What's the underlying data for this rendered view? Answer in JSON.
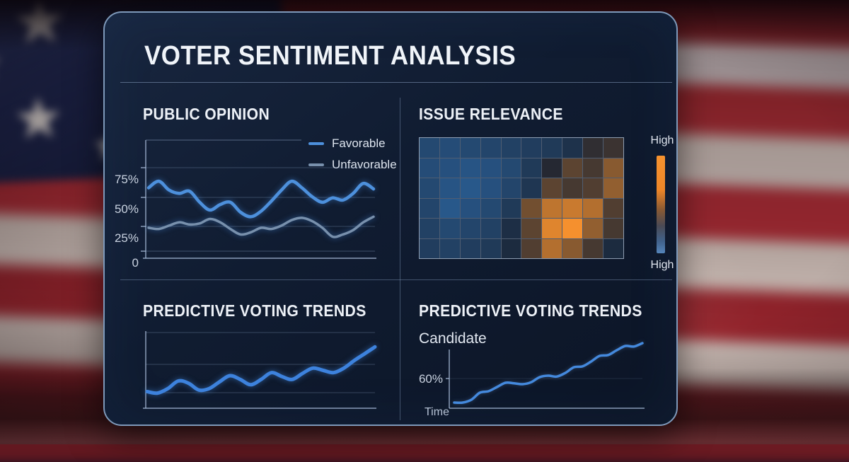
{
  "title": "VOTER SENTIMENT ANALYSIS",
  "sections": {
    "public_opinion": {
      "title": "PUBLIC OPINION",
      "y_axis_labels": [
        "75%",
        "50%",
        "25%",
        "0"
      ],
      "legend": [
        {
          "label": "Favorable",
          "color": "#4d90dc"
        },
        {
          "label": "Unfavorable",
          "color": "#7890ac"
        }
      ]
    },
    "issue_relevance": {
      "title": "ISSUE RELEVANCE",
      "colorbar": {
        "top_label": "High",
        "bottom_label": "High",
        "gradient": [
          "#f6922f",
          "#ee8628",
          "#8a5a33",
          "#4a4a55",
          "#41628c",
          "#5585bb"
        ]
      }
    },
    "predictive_left": {
      "title": "PREDICTIVE VOTING TRENDS"
    },
    "predictive_right": {
      "title": "PREDICTIVE VOTING TRENDS",
      "series_label": "Candidate",
      "y_tick_label": "60%",
      "x_axis_label": "Time"
    }
  },
  "chart_data": [
    {
      "type": "line",
      "panel": "public_opinion",
      "title": "PUBLIC OPINION",
      "xlabel": "",
      "ylabel": "",
      "ylim": [
        0,
        100
      ],
      "y_ticks_percent": [
        75,
        50,
        25,
        0
      ],
      "grid": true,
      "legend_position": "top-right",
      "series": [
        {
          "name": "Favorable",
          "color": "#4d90dc",
          "values": [
            57,
            63,
            55,
            52,
            54,
            44,
            37,
            42,
            44,
            35,
            31,
            36,
            45,
            55,
            63,
            57,
            49,
            44,
            48,
            46,
            52,
            61,
            56
          ]
        },
        {
          "name": "Unfavorable",
          "color": "#7890ac",
          "values": [
            21,
            20,
            23,
            26,
            24,
            25,
            29,
            26,
            20,
            15,
            17,
            21,
            20,
            23,
            28,
            30,
            27,
            21,
            13,
            15,
            19,
            26,
            31
          ]
        }
      ]
    },
    {
      "type": "heatmap",
      "panel": "issue_relevance",
      "title": "ISSUE RELEVANCE",
      "rows": 6,
      "cols": 10,
      "scale_note": "-1 = blue (low relevance), 0 = dark neutral, +1 = bright orange (high relevance)",
      "colors": {
        "low": "#2e6eb0",
        "mid": "#1a2332",
        "high": "#f5902e"
      },
      "colorbar_labels": {
        "top": "High",
        "bottom": "High"
      },
      "values": [
        [
          -0.5,
          -0.55,
          -0.5,
          -0.45,
          -0.4,
          -0.35,
          -0.3,
          -0.2,
          0.1,
          0.15
        ],
        [
          -0.55,
          -0.6,
          -0.65,
          -0.6,
          -0.5,
          -0.3,
          0.05,
          0.3,
          0.2,
          0.5
        ],
        [
          -0.5,
          -0.65,
          -0.7,
          -0.6,
          -0.45,
          -0.25,
          0.3,
          0.2,
          0.25,
          0.55
        ],
        [
          -0.45,
          -0.7,
          -0.6,
          -0.5,
          -0.3,
          0.4,
          0.75,
          0.8,
          0.7,
          0.25
        ],
        [
          -0.4,
          -0.5,
          -0.45,
          -0.4,
          -0.15,
          0.3,
          0.9,
          1.0,
          0.55,
          0.2
        ],
        [
          -0.35,
          -0.4,
          -0.35,
          -0.3,
          -0.1,
          0.25,
          0.7,
          0.5,
          0.2,
          -0.1
        ]
      ]
    },
    {
      "type": "line",
      "panel": "predictive_left",
      "title": "PREDICTIVE VOTING TRENDS",
      "xlabel": "",
      "ylabel": "",
      "ylim": [
        0,
        100
      ],
      "grid": true,
      "series": [
        {
          "name": "Trend",
          "color": "#3d82dd",
          "values": [
            22,
            20,
            26,
            36,
            33,
            24,
            26,
            35,
            43,
            38,
            31,
            38,
            47,
            42,
            38,
            46,
            53,
            50,
            47,
            53,
            63,
            72,
            81
          ]
        }
      ]
    },
    {
      "type": "line",
      "panel": "predictive_right",
      "title": "PREDICTIVE VOTING TRENDS",
      "xlabel": "Time",
      "ylabel": "",
      "ylim": [
        40,
        90
      ],
      "y_tick": {
        "label": "60%",
        "value": 60
      },
      "grid": false,
      "series": [
        {
          "name": "Candidate",
          "color": "#4489dd",
          "values": [
            52,
            52,
            53,
            55.5,
            56,
            57.5,
            59,
            58.8,
            58.5,
            59.2,
            61,
            61.5,
            61.2,
            62.5,
            64.5,
            64.8,
            66.5,
            68.5,
            68.8,
            70.5,
            72,
            71.8,
            73
          ]
        }
      ]
    }
  ]
}
